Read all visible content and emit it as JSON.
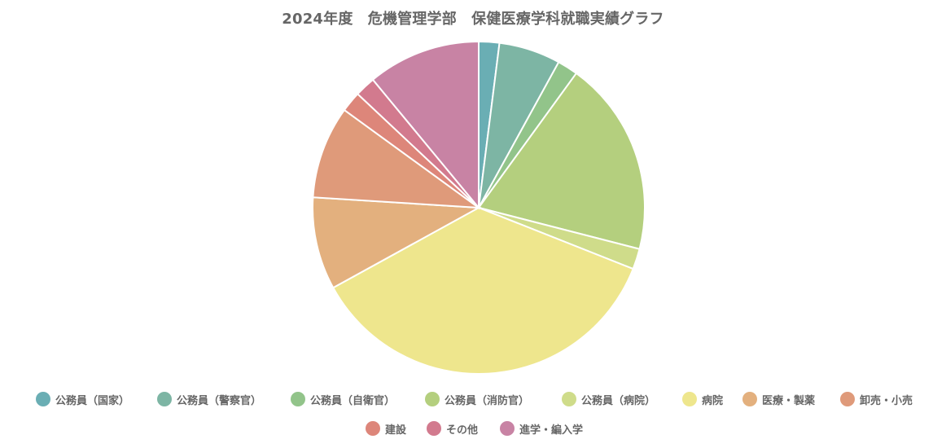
{
  "chart_data": {
    "type": "pie",
    "title": "2024年度　危機管理学部　保健医療学科就職実績グラフ",
    "slices": [
      {
        "label": "公務員（国家）",
        "value": 2,
        "color": "#6aaeb4"
      },
      {
        "label": "公務員（警察官）",
        "value": 6,
        "color": "#7db5a4"
      },
      {
        "label": "公務員（自衛官）",
        "value": 2,
        "color": "#92c48a"
      },
      {
        "label": "公務員（消防官）",
        "value": 19,
        "color": "#b4cf7e"
      },
      {
        "label": "公務員（病院）",
        "value": 2,
        "color": "#cfdc8a"
      },
      {
        "label": "病院",
        "value": 36,
        "color": "#eee68d"
      },
      {
        "label": "医療・製薬",
        "value": 9,
        "color": "#e3b07e"
      },
      {
        "label": "卸売・小売",
        "value": 9,
        "color": "#df9a7a"
      },
      {
        "label": "建設",
        "value": 2,
        "color": "#dd867a"
      },
      {
        "label": "その他",
        "value": 2,
        "color": "#d27a8e"
      },
      {
        "label": "進学・編入学",
        "value": 11,
        "color": "#c883a4"
      }
    ],
    "legend_position": "bottom"
  }
}
